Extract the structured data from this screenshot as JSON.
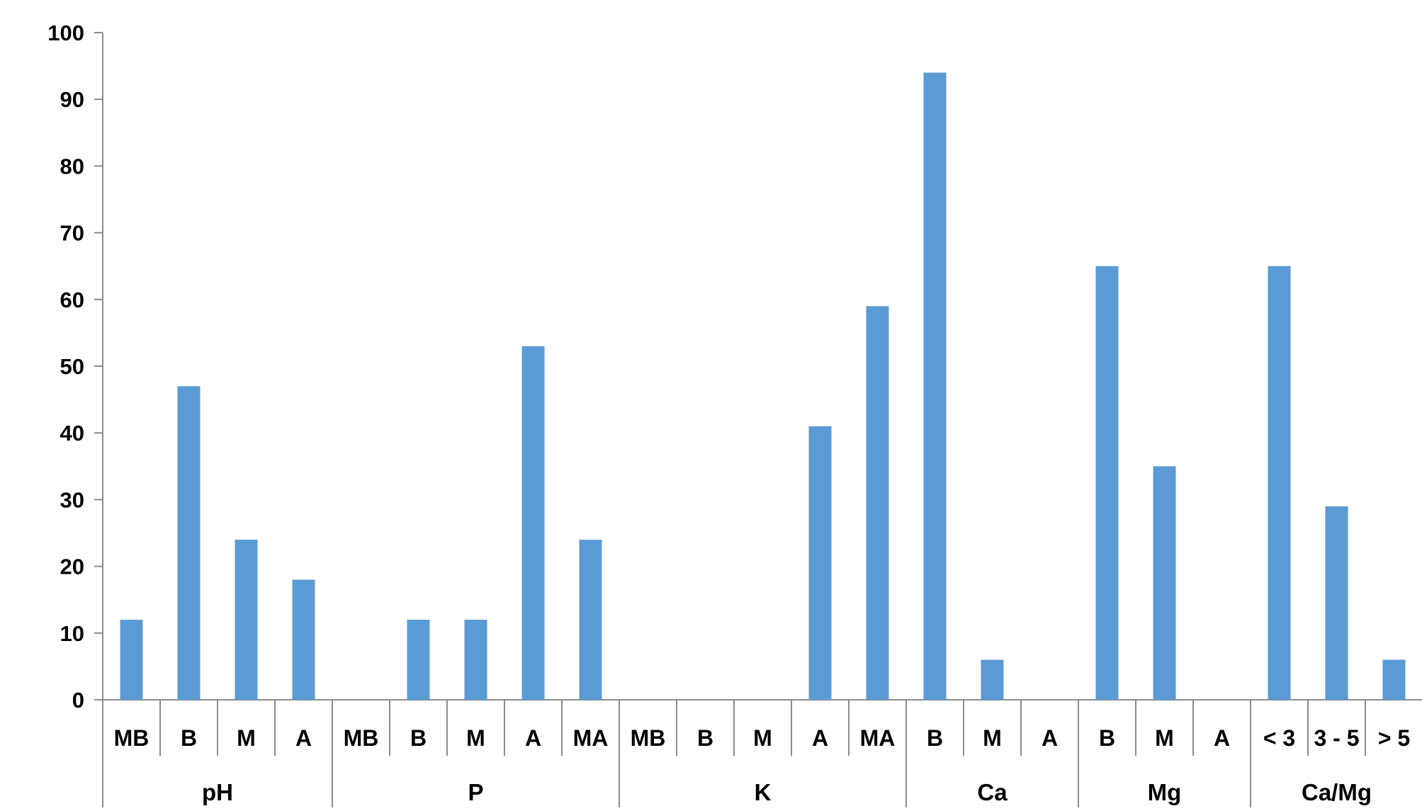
{
  "chart_data": {
    "type": "bar",
    "ylim": [
      0,
      100
    ],
    "yticks": [
      0,
      10,
      20,
      30,
      40,
      50,
      60,
      70,
      80,
      90,
      100
    ],
    "grid": false,
    "bar_color": "#5b9bd5",
    "groups": [
      {
        "name": "pH",
        "categories": [
          "MB",
          "B",
          "M",
          "A"
        ],
        "values": [
          12,
          47,
          24,
          18
        ]
      },
      {
        "name": "P",
        "categories": [
          "MB",
          "B",
          "M",
          "A",
          "MA"
        ],
        "values": [
          0,
          12,
          12,
          53,
          24
        ]
      },
      {
        "name": "K",
        "categories": [
          "MB",
          "B",
          "M",
          "A",
          "MA"
        ],
        "values": [
          0,
          0,
          0,
          41,
          59
        ]
      },
      {
        "name": "Ca",
        "categories": [
          "B",
          "M",
          "A"
        ],
        "values": [
          94,
          6,
          0
        ]
      },
      {
        "name": "Mg",
        "categories": [
          "B",
          "M",
          "A"
        ],
        "values": [
          65,
          35,
          0
        ]
      },
      {
        "name": "Ca/Mg",
        "categories": [
          "< 3",
          "3 - 5",
          "> 5"
        ],
        "values": [
          65,
          29,
          6
        ]
      }
    ]
  }
}
